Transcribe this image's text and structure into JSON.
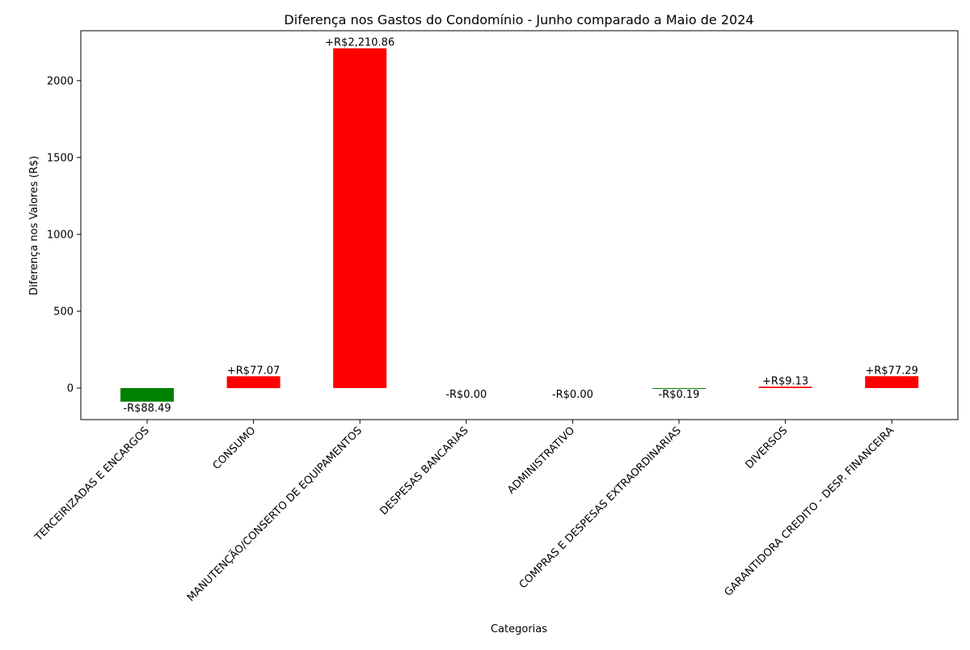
{
  "chart_data": {
    "type": "bar",
    "title": "Diferença nos Gastos do Condomínio - Junho comparado a Maio de 2024",
    "xlabel": "Categorias",
    "ylabel": "Diferença nos Valores (R$)",
    "categories": [
      "TERCEIRIZADAS E ENCARGOS",
      "CONSUMO",
      "MANUTENÇÃO/CONSERTO DE EQUIPAMENTOS",
      "DESPESAS BANCARIAS",
      "ADMINISTRATIVO",
      "COMPRAS E DESPESAS EXTRAORDINARIAS",
      "DIVERSOS",
      "GARANTIDORA CREDITO - DESP. FINANCEIRA"
    ],
    "values": [
      -88.49,
      77.07,
      2210.86,
      0.0,
      0.0,
      -0.19,
      9.13,
      77.29
    ],
    "data_labels": [
      "-R$88.49",
      "+R$77.07",
      "+R$2,210.86",
      "-R$0.00",
      "-R$0.00",
      "-R$0.19",
      "+R$9.13",
      "+R$77.29"
    ],
    "bar_colors": [
      "#008000",
      "#ff0000",
      "#ff0000",
      "#008000",
      "#008000",
      "#008000",
      "#ff0000",
      "#ff0000"
    ],
    "y_ticks": [
      0,
      500,
      1000,
      1500,
      2000
    ],
    "ylim": [
      -205,
      2325
    ],
    "grid": false,
    "legend": "none"
  }
}
